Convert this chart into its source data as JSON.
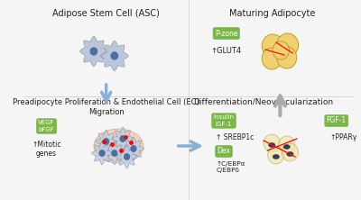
{
  "bg_color": "#f5f5f5",
  "title_asc": "Adipose Stem Cell (ASC)",
  "title_ma": "Maturing Adipocyte",
  "title_prolif": "Preadipocyte Proliferation & Endothelial Cell (EC)\nMigration",
  "title_diff": "Differentiation/Neovascularization",
  "box_pzone": "P-zone",
  "text_glut4": "↑GLUT4",
  "box_vegf": "VEGF\nbFGF",
  "text_mitotic": "↑Mitotic\ngenes",
  "box_insulin": "Insulin\nIGF-1",
  "text_srebp": "↑ SREBP1c",
  "box_dex": "Dex",
  "text_cebp": "↑C/EBPα\nC/EBPδ",
  "box_fgf1": "FGF-1",
  "text_ppary": "↑PPARγ",
  "box_color": "#7ab648",
  "box_text_color": "white",
  "arrow_color": "#8aafd4",
  "outline_color": "#555555"
}
